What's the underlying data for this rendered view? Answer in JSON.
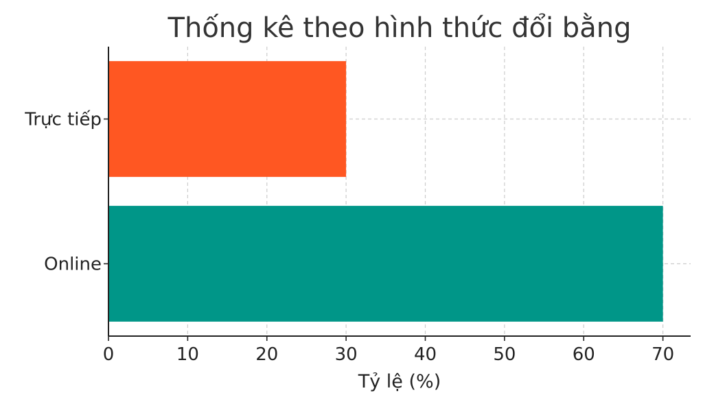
{
  "chart_data": {
    "type": "bar",
    "orientation": "horizontal",
    "title": "Thống kê theo hình thức đổi bằng",
    "xlabel": "Tỷ lệ (%)",
    "ylabel": "",
    "categories": [
      "Trực tiếp",
      "Online"
    ],
    "values": [
      30,
      70
    ],
    "colors": [
      "#FF5722",
      "#009688"
    ],
    "xlim": [
      0,
      73.5
    ],
    "xticks": [
      0,
      10,
      20,
      30,
      40,
      50,
      60,
      70
    ],
    "grid": true
  }
}
